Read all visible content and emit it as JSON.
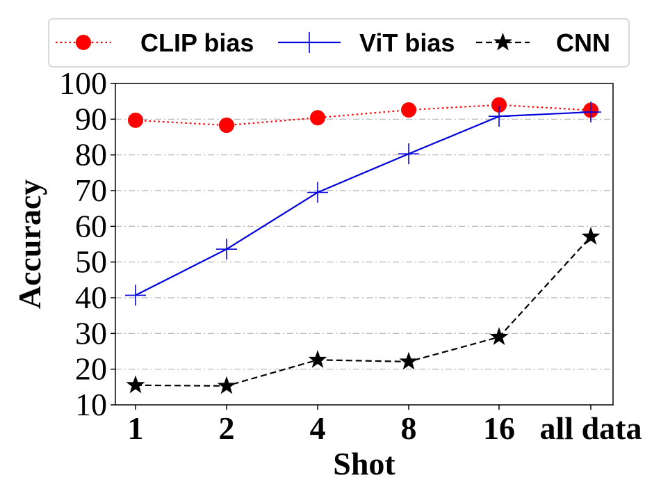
{
  "chart_data": {
    "type": "line",
    "title": "",
    "xlabel": "Shot",
    "ylabel": "Accuracy",
    "categories": [
      "1",
      "2",
      "4",
      "8",
      "16",
      "all data"
    ],
    "ylim": [
      10,
      100
    ],
    "yticks": [
      "10",
      "20",
      "30",
      "40",
      "50",
      "60",
      "70",
      "80",
      "90",
      "100"
    ],
    "grid": "horizontal dash-dot",
    "legend_position": "top",
    "series": [
      {
        "name": "CLIP bias",
        "values": [
          89.7,
          88.3,
          90.4,
          92.6,
          94.0,
          92.5
        ],
        "color": "#ff0000",
        "linestyle": "dotted",
        "marker": "circle"
      },
      {
        "name": "ViT bias",
        "values": [
          40.7,
          53.6,
          69.5,
          80.3,
          90.8,
          92.0
        ],
        "color": "#0000dd",
        "linestyle": "solid",
        "marker": "plus"
      },
      {
        "name": "CNN",
        "values": [
          15.5,
          15.3,
          22.6,
          22.1,
          29.0,
          57.1
        ],
        "color": "#000000",
        "linestyle": "dashed",
        "marker": "star"
      }
    ]
  }
}
